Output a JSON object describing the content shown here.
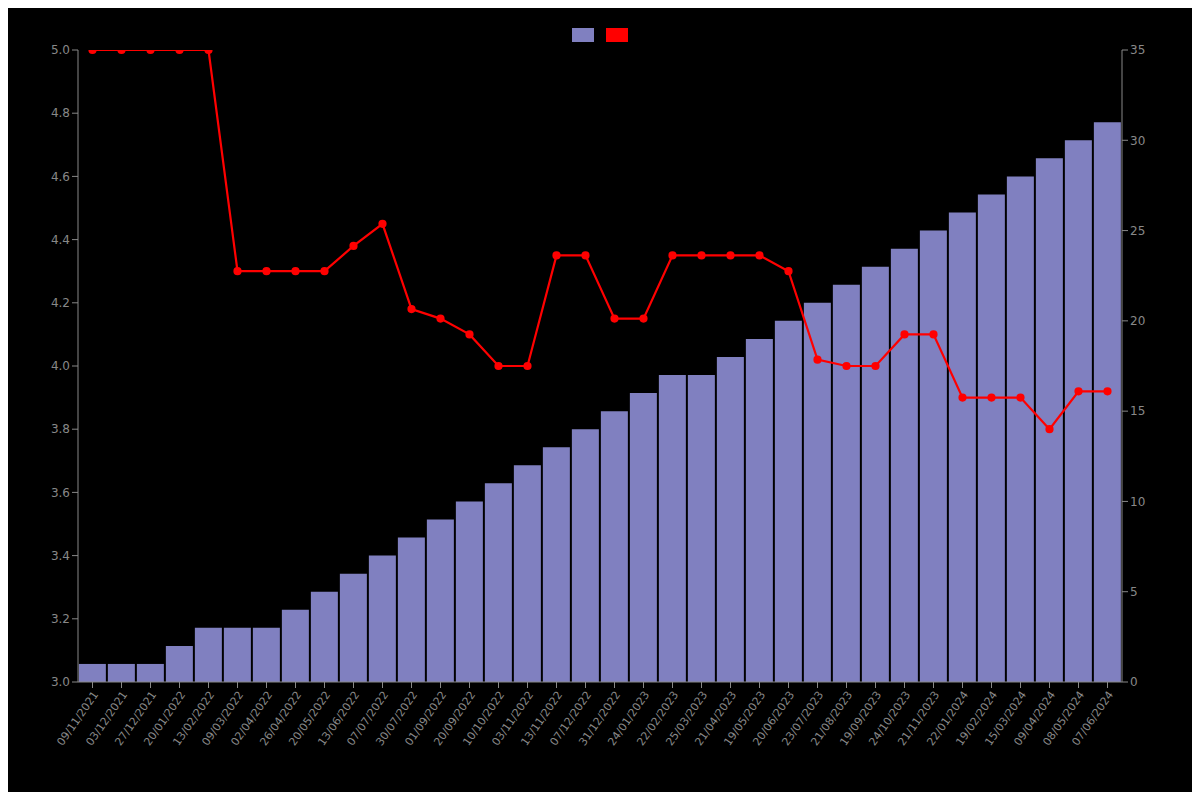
{
  "chart_data": {
    "type": "bar",
    "categories": [
      "09/11/2021",
      "03/12/2021",
      "27/12/2021",
      "20/01/2022",
      "13/02/2022",
      "09/03/2022",
      "02/04/2022",
      "26/04/2022",
      "20/05/2022",
      "13/06/2022",
      "07/07/2022",
      "30/07/2022",
      "01/09/2022",
      "20/09/2022",
      "10/10/2022",
      "03/11/2022",
      "13/11/2022",
      "07/12/2022",
      "31/12/2022",
      "24/01/2023",
      "22/02/2023",
      "25/03/2023",
      "21/04/2023",
      "19/05/2023",
      "20/06/2023",
      "23/07/2023",
      "21/08/2023",
      "19/09/2023",
      "24/10/2023",
      "21/11/2023",
      "22/01/2024",
      "19/02/2024",
      "15/03/2024",
      "09/04/2024",
      "08/05/2024",
      "07/06/2024"
    ],
    "series": [
      {
        "type": "bar",
        "axis": "y2",
        "color": "#8080c0",
        "values": [
          1,
          1,
          1,
          2,
          3,
          3,
          3,
          4,
          5,
          6,
          7,
          8,
          9,
          10,
          11,
          12,
          13,
          14,
          15,
          16,
          17,
          17,
          18,
          19,
          20,
          21,
          22,
          23,
          24,
          25,
          26,
          27,
          28,
          29,
          30,
          31
        ]
      },
      {
        "type": "line",
        "color": "#ff0000",
        "marker": "circle",
        "values": [
          5.0,
          5.0,
          5.0,
          5.0,
          5.0,
          4.3,
          4.3,
          4.3,
          4.3,
          4.38,
          4.45,
          4.18,
          4.15,
          4.1,
          4.0,
          4.0,
          4.35,
          4.35,
          4.15,
          4.15,
          4.35,
          4.35,
          4.35,
          4.35,
          4.3,
          4.02,
          4.0,
          4.0,
          4.1,
          4.1,
          3.9,
          3.9,
          3.9,
          3.8,
          3.92,
          3.92
        ]
      }
    ],
    "ylim": [
      3.0,
      5.0
    ],
    "yticks": [
      {
        "value": 3,
        "label": "3.0"
      },
      3.2,
      3.4,
      3.6,
      3.8,
      {
        "value": 4,
        "label": "4.0"
      },
      4.2,
      4.4,
      4.6,
      4.8,
      {
        "value": 5,
        "label": "5.0"
      }
    ],
    "y2lim": [
      0,
      35
    ],
    "y2ticks": [
      0,
      5,
      10,
      15,
      20,
      25,
      30,
      35
    ],
    "grid": false,
    "legend": "top"
  }
}
